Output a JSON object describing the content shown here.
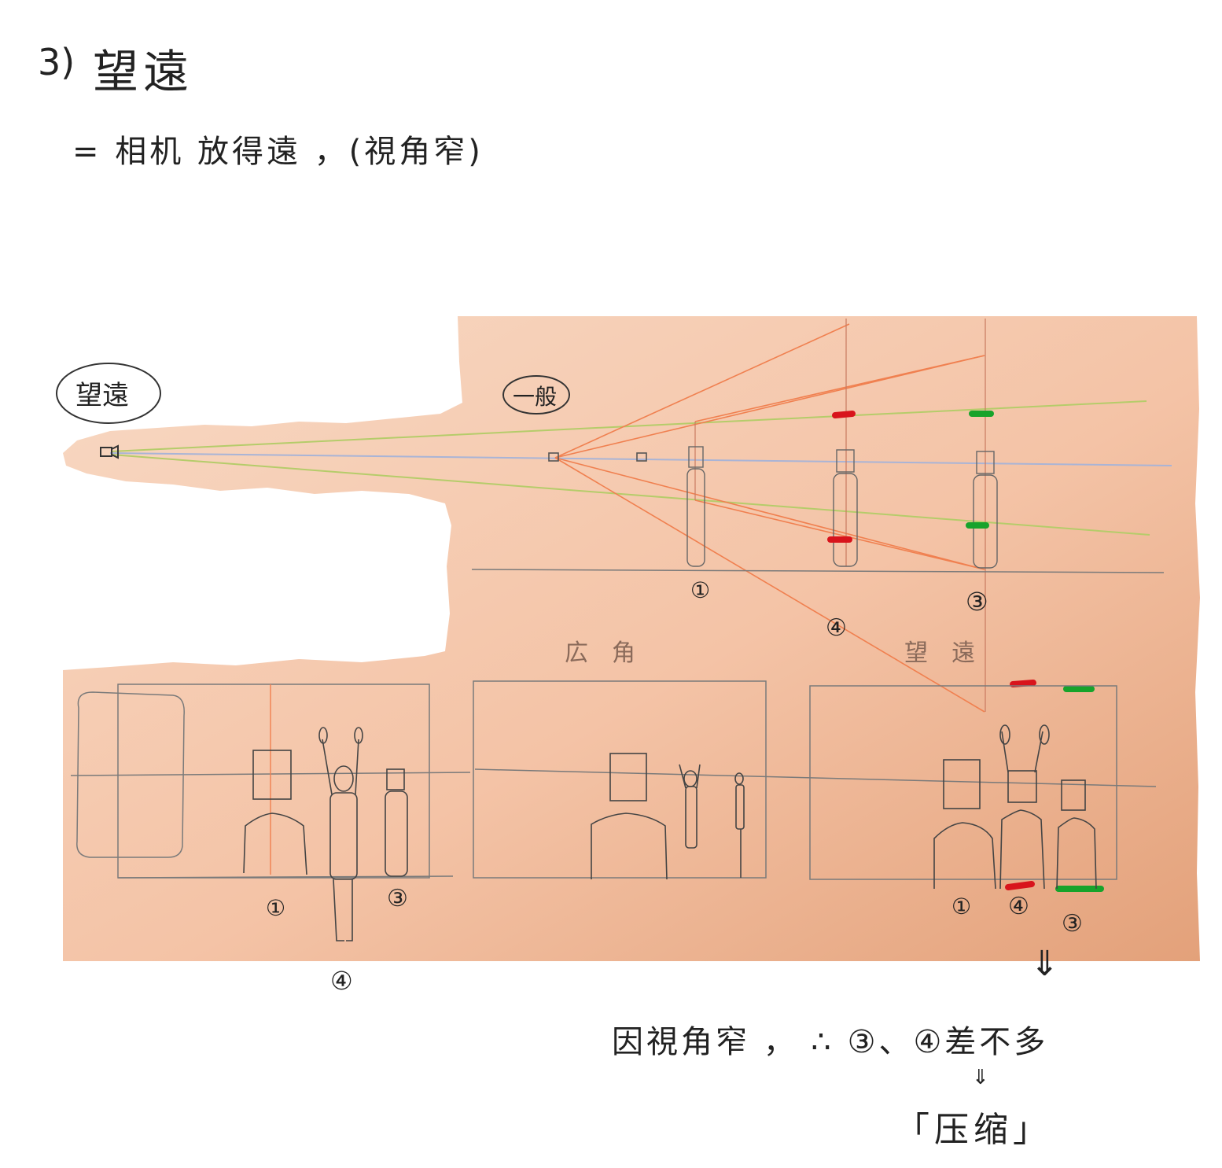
{
  "heading": {
    "number": "3)",
    "title": "望遠"
  },
  "subtitle": "= 相机 放得遠 ，(視角窄)",
  "diagram": {
    "label_telephoto": "望遠",
    "label_normal": "一般",
    "label_wide_section": "広角",
    "label_tele_section": "望遠",
    "top_markers": [
      "①",
      "④",
      "③"
    ],
    "frame_left_markers": [
      "①",
      "③",
      "④"
    ],
    "frame_right_markers": [
      "①",
      "④",
      "③"
    ],
    "colors": {
      "paper": "#f3c2a6",
      "sight_line_orange": "#f08050",
      "sight_line_green": "#b5cc6a",
      "axis_blue": "#a9b4d6",
      "mark_red": "#d8141c",
      "mark_green": "#17a32b",
      "pencil": "#5a5a5a"
    }
  },
  "note": {
    "line1": "因視角窄 ， ∴  ③、④差不多",
    "arrow1": "⇓",
    "arrow2": "⇓",
    "result": "「压缩」"
  }
}
